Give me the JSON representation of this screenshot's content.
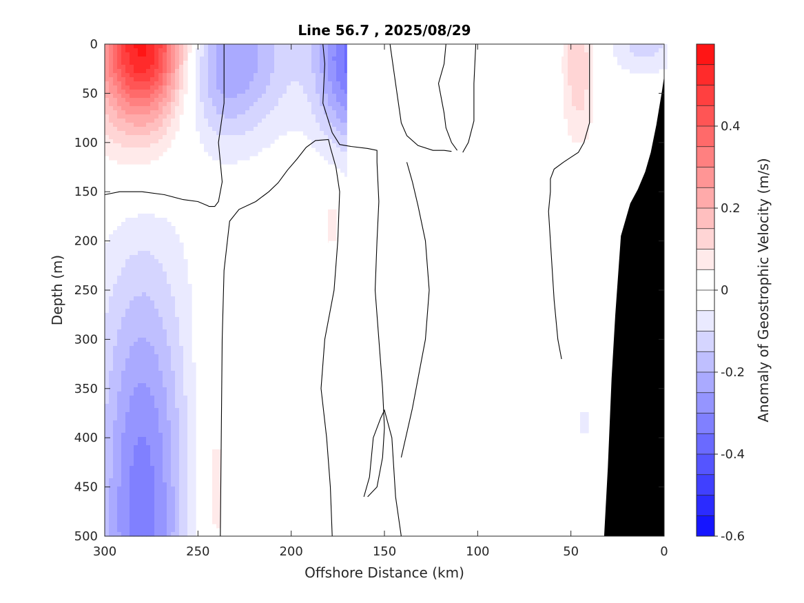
{
  "chart_data": {
    "type": "contour",
    "title": "Line 56.7 , 2025/08/29",
    "xlabel": "Offshore Distance (km)",
    "ylabel": "Depth (m)",
    "colorbar_label": "Anomaly of Geostrophic Velocity (m/s)",
    "xlim": [
      300,
      0
    ],
    "ylim": [
      0,
      500
    ],
    "x_ticks": [
      300,
      250,
      200,
      150,
      100,
      50,
      0
    ],
    "x_tick_labels": [
      "300",
      "250",
      "200",
      "150",
      "100",
      "50",
      "0"
    ],
    "y_ticks": [
      0,
      50,
      100,
      150,
      200,
      250,
      300,
      350,
      400,
      450,
      500
    ],
    "y_tick_labels": [
      "0",
      "50",
      "100",
      "150",
      "200",
      "250",
      "300",
      "350",
      "400",
      "450",
      "500"
    ],
    "colorbar_range": [
      -0.6,
      0.6
    ],
    "colorbar_step": 0.05,
    "colorbar_ticks": [
      0.4,
      0.2,
      0,
      -0.2,
      -0.4,
      -0.6
    ],
    "colorbar_tick_labels": [
      "0.4",
      "0.2",
      "0",
      "-0.2",
      "-0.4",
      "-0.6"
    ],
    "colors": {
      "positive": "#ff0000",
      "negative": "#0000ff",
      "bathymetry": "#000000",
      "contour": "#000000"
    },
    "blobs": [
      {
        "name": "surface-red-core",
        "x": 279,
        "depth": 0,
        "rx": 23,
        "rd": 72,
        "peak": 0.5
      },
      {
        "name": "surface-red-tail",
        "x": 284,
        "depth": 55,
        "rx": 27,
        "rd": 105,
        "peak": 0.12
      },
      {
        "name": "blue-eddy-surface",
        "x": 228,
        "depth": 8,
        "rx": 30,
        "rd": 85,
        "peak": -0.22
      },
      {
        "name": "blue-eddy-shoulder",
        "x": 242,
        "depth": 40,
        "rx": 18,
        "rd": 65,
        "peak": -0.06
      },
      {
        "name": "blue-edge-surface",
        "x": 168,
        "depth": 15,
        "rx": 19,
        "rd": 85,
        "peak": -0.36
      },
      {
        "name": "deep-blue-column",
        "x": 280,
        "depth": 480,
        "rx": 22,
        "rd": 230,
        "peak": -0.26
      },
      {
        "name": "deep-blue-halo",
        "x": 280,
        "depth": 420,
        "rx": 38,
        "rd": 330,
        "peak": -0.07
      },
      {
        "name": "deep-red-lens",
        "x": 242,
        "depth": 450,
        "rx": 11,
        "rd": 170,
        "peak": 0.09
      },
      {
        "name": "mid-red-patch",
        "x": 178,
        "depth": 180,
        "rx": 5,
        "rd": 42,
        "peak": 0.07
      },
      {
        "name": "inshore-red-surface",
        "x": 46,
        "depth": 20,
        "rx": 9,
        "rd": 85,
        "peak": 0.14
      },
      {
        "name": "inshore-blue-surface",
        "x": 10,
        "depth": 0,
        "rx": 20,
        "rd": 32,
        "peak": -0.12
      },
      {
        "name": "inshore-blue-deep",
        "x": 43,
        "depth": 385,
        "rx": 4,
        "rd": 22,
        "peak": -0.07
      }
    ],
    "data_masks": [
      {
        "x_from": 170,
        "x_to": 55,
        "depth_from": 0,
        "depth_to": 500
      },
      {
        "x_from": 180,
        "x_to": 170,
        "depth_from": 200,
        "depth_to": 500
      },
      {
        "x_from": 55,
        "x_to": 36,
        "depth_from": 100,
        "depth_to": 360
      },
      {
        "x_from": 55,
        "x_to": 36,
        "depth_from": 400,
        "depth_to": 500
      }
    ],
    "zero_contours": [
      [
        [
          300,
          153
        ],
        [
          292,
          150
        ],
        [
          280,
          150
        ],
        [
          268,
          153
        ],
        [
          258,
          158
        ],
        [
          250,
          160
        ],
        [
          245,
          164
        ],
        [
          244,
          165
        ],
        [
          241,
          165
        ],
        [
          239,
          160
        ],
        [
          237,
          140
        ],
        [
          239,
          100
        ],
        [
          236,
          60
        ],
        [
          236,
          0
        ]
      ],
      [
        [
          238,
          500
        ],
        [
          237,
          300
        ],
        [
          236,
          230
        ],
        [
          233,
          180
        ],
        [
          228,
          168
        ],
        [
          219,
          160
        ],
        [
          212,
          150
        ],
        [
          207,
          141
        ],
        [
          202,
          128
        ],
        [
          197,
          117
        ],
        [
          192,
          105
        ],
        [
          187,
          98
        ],
        [
          180,
          97
        ],
        [
          179,
          105
        ],
        [
          176,
          125
        ],
        [
          174,
          150
        ],
        [
          175,
          200
        ],
        [
          177,
          250
        ],
        [
          182,
          300
        ],
        [
          184,
          350
        ],
        [
          181,
          400
        ],
        [
          179,
          450
        ],
        [
          178,
          500
        ]
      ],
      [
        [
          183,
          0
        ],
        [
          182,
          20
        ],
        [
          183,
          60
        ],
        [
          178,
          90
        ],
        [
          174,
          102
        ],
        [
          168,
          104
        ],
        [
          159,
          106
        ],
        [
          154,
          108
        ],
        [
          154,
          120
        ],
        [
          153,
          160
        ],
        [
          154,
          200
        ],
        [
          155,
          250
        ],
        [
          153,
          300
        ],
        [
          151,
          350
        ],
        [
          150,
          390
        ],
        [
          151,
          420
        ],
        [
          154,
          450
        ],
        [
          159,
          460
        ]
      ],
      [
        [
          147,
          0
        ],
        [
          144,
          40
        ],
        [
          141,
          80
        ],
        [
          138,
          93
        ],
        [
          132,
          103
        ],
        [
          124,
          108
        ],
        [
          118,
          108
        ],
        [
          114,
          109
        ]
      ],
      [
        [
          138,
          120
        ],
        [
          135,
          140
        ],
        [
          132,
          164
        ],
        [
          128,
          200
        ],
        [
          126,
          250
        ],
        [
          128,
          300
        ],
        [
          132,
          340
        ],
        [
          135,
          370
        ],
        [
          138,
          395
        ],
        [
          141,
          420
        ]
      ],
      [
        [
          117,
          0
        ],
        [
          118,
          20
        ],
        [
          121,
          40
        ],
        [
          118,
          70
        ],
        [
          117,
          85
        ],
        [
          114,
          100
        ],
        [
          111,
          108
        ]
      ],
      [
        [
          161,
          460
        ],
        [
          158,
          440
        ],
        [
          156,
          400
        ],
        [
          152,
          380
        ],
        [
          150,
          372
        ],
        [
          146,
          400
        ],
        [
          144,
          460
        ],
        [
          141,
          500
        ]
      ],
      [
        [
          40,
          0
        ],
        [
          40,
          30
        ],
        [
          40,
          80
        ],
        [
          43,
          100
        ],
        [
          46,
          110
        ],
        [
          50,
          115
        ],
        [
          54,
          120
        ],
        [
          59,
          127
        ],
        [
          61,
          137
        ],
        [
          61,
          150
        ],
        [
          62,
          170
        ],
        [
          61,
          200
        ],
        [
          60,
          230
        ],
        [
          59,
          260
        ],
        [
          57,
          300
        ],
        [
          55,
          320
        ]
      ],
      [
        [
          101,
          0
        ],
        [
          102,
          40
        ],
        [
          102,
          78
        ],
        [
          105,
          100
        ],
        [
          108,
          110
        ]
      ]
    ],
    "bathymetry": [
      [
        0,
        35
      ],
      [
        1,
        48
      ],
      [
        4,
        82
      ],
      [
        7,
        110
      ],
      [
        10,
        130
      ],
      [
        14,
        148
      ],
      [
        18,
        162
      ],
      [
        23,
        195
      ],
      [
        26,
        275
      ],
      [
        28,
        340
      ],
      [
        30,
        430
      ],
      [
        32,
        500
      ],
      [
        0,
        500
      ]
    ]
  }
}
